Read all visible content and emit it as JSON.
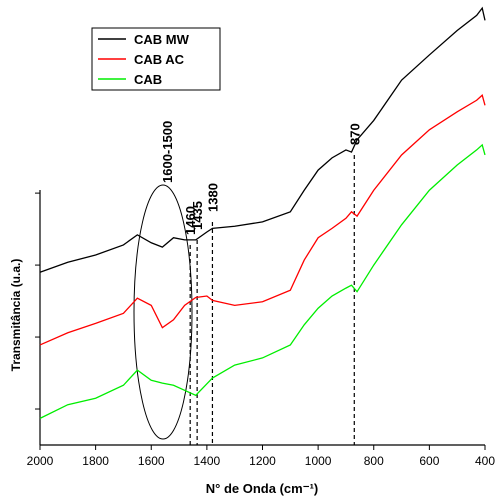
{
  "chart_data": {
    "type": "line",
    "xlabel": "N° de Onda (cm⁻¹)",
    "ylabel": "Transmitância (u.a.)",
    "x": [
      2000,
      1900,
      1800,
      1700,
      1650,
      1600,
      1560,
      1520,
      1480,
      1440,
      1400,
      1380,
      1300,
      1200,
      1100,
      1050,
      1000,
      950,
      900,
      880,
      860,
      800,
      700,
      600,
      500,
      430,
      410,
      400
    ],
    "series": [
      {
        "name": "CAB MW",
        "color": "#000000",
        "values": [
          1.9,
          2.04,
          2.14,
          2.28,
          2.42,
          2.31,
          2.25,
          2.38,
          2.35,
          2.35,
          2.46,
          2.51,
          2.54,
          2.6,
          2.74,
          3.04,
          3.32,
          3.49,
          3.6,
          3.57,
          3.74,
          4.01,
          4.57,
          4.92,
          5.26,
          5.47,
          5.57,
          5.4
        ]
      },
      {
        "name": "CAB AC",
        "color": "#ff0000",
        "values": [
          0.89,
          1.06,
          1.19,
          1.33,
          1.54,
          1.44,
          1.13,
          1.24,
          1.44,
          1.55,
          1.57,
          1.51,
          1.44,
          1.49,
          1.65,
          2.07,
          2.38,
          2.51,
          2.65,
          2.74,
          2.68,
          3.04,
          3.53,
          3.88,
          4.13,
          4.29,
          4.36,
          4.22
        ]
      },
      {
        "name": "CAB",
        "color": "#00ee00",
        "values": [
          -0.13,
          0.06,
          0.15,
          0.33,
          0.54,
          0.4,
          0.36,
          0.33,
          0.26,
          0.19,
          0.35,
          0.43,
          0.61,
          0.71,
          0.89,
          1.17,
          1.4,
          1.57,
          1.68,
          1.72,
          1.63,
          2.0,
          2.56,
          3.04,
          3.39,
          3.6,
          3.67,
          3.53
        ]
      }
    ],
    "xlim": [
      2000,
      400
    ],
    "xticks": [
      2000,
      1800,
      1600,
      1400,
      1200,
      1000,
      800,
      600,
      400
    ],
    "ylim": [
      -0.5,
      5.6
    ],
    "yticks": [
      0,
      1,
      2,
      3
    ],
    "legend": "upper left",
    "region_label": "1600-1500",
    "markers": [
      1460,
      1435,
      1380,
      870
    ]
  }
}
